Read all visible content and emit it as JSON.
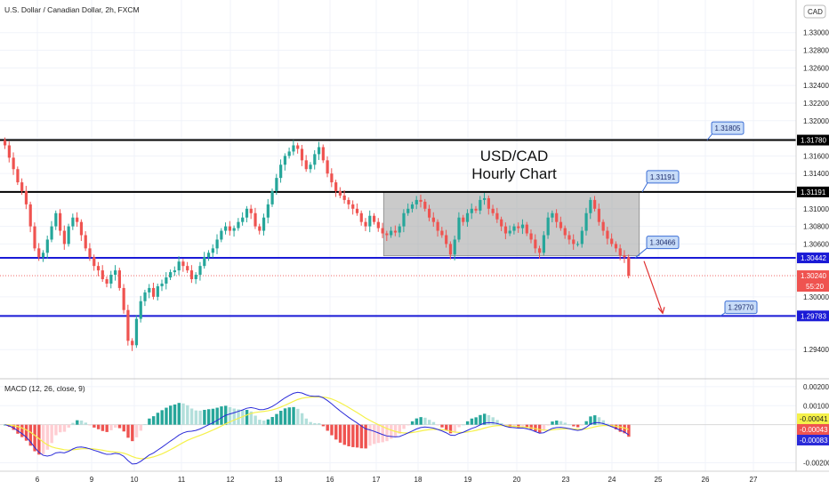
{
  "header": {
    "symbol_title": "U.S. Dollar / Canadian Dollar, 2h, FXCM",
    "currency_button": "CAD"
  },
  "annotation": {
    "line1": "USD/CAD",
    "line2": "Hourly Chart"
  },
  "macd_title": "MACD (12, 26, close, 9)",
  "colors": {
    "up": "#26a69a",
    "down": "#ef5350",
    "level_blue": "#1a1ad6",
    "level_black": "#000000",
    "box": "#9e9e9e",
    "callout_bg": "#c8dcf8",
    "callout_border": "#3d6fd6",
    "macd_line": "#2a2ad8",
    "signal_line": "#f5f14a",
    "arrow": "#e03030"
  },
  "chart_data": [
    {
      "type": "candlestick",
      "title": "U.S. Dollar / Canadian Dollar, 2h, FXCM",
      "x_ticks": [
        "6",
        "9",
        "10",
        "11",
        "12",
        "13",
        "16",
        "17",
        "18",
        "19",
        "20",
        "23",
        "24",
        "25",
        "26",
        "27"
      ],
      "y_ticks": [
        "1.33000",
        "1.32800",
        "1.32600",
        "1.32400",
        "1.32200",
        "1.32000",
        "1.31800",
        "1.31600",
        "1.31400",
        "1.31000",
        "1.30800",
        "1.30600",
        "1.30000",
        "1.29400"
      ],
      "ylim": [
        1.2915,
        1.3327
      ],
      "close_series": [
        1.3172,
        1.3158,
        1.3145,
        1.313,
        1.312,
        1.3105,
        1.308,
        1.3055,
        1.3045,
        1.305,
        1.3065,
        1.308,
        1.3095,
        1.3075,
        1.306,
        1.308,
        1.309,
        1.3085,
        1.307,
        1.3055,
        1.3045,
        1.3035,
        1.303,
        1.302,
        1.3015,
        1.3025,
        1.303,
        1.301,
        1.2985,
        1.295,
        1.2945,
        1.2975,
        1.2995,
        1.3005,
        1.301,
        1.3,
        1.3012,
        1.3015,
        1.3022,
        1.3028,
        1.303,
        1.304,
        1.3035,
        1.303,
        1.302,
        1.3025,
        1.3035,
        1.3045,
        1.305,
        1.3055,
        1.3065,
        1.3075,
        1.308,
        1.3075,
        1.3078,
        1.3085,
        1.309,
        1.31,
        1.3095,
        1.308,
        1.3075,
        1.309,
        1.3105,
        1.312,
        1.3135,
        1.315,
        1.316,
        1.3165,
        1.3172,
        1.3168,
        1.3155,
        1.3145,
        1.315,
        1.3162,
        1.317,
        1.3155,
        1.314,
        1.313,
        1.312,
        1.3115,
        1.311,
        1.3105,
        1.31,
        1.3095,
        1.3085,
        1.308,
        1.3092,
        1.3085,
        1.3078,
        1.3072,
        1.307,
        1.3075,
        1.3073,
        1.308,
        1.3095,
        1.31,
        1.3105,
        1.311,
        1.3108,
        1.31,
        1.309,
        1.3085,
        1.3075,
        1.307,
        1.306,
        1.3048,
        1.3065,
        1.309,
        1.3085,
        1.3095,
        1.31,
        1.3098,
        1.311,
        1.3112,
        1.31,
        1.3095,
        1.3088,
        1.308,
        1.3072,
        1.3075,
        1.308,
        1.3078,
        1.3082,
        1.3072,
        1.3065,
        1.3055,
        1.305,
        1.307,
        1.309,
        1.3095,
        1.3085,
        1.3078,
        1.307,
        1.3065,
        1.306,
        1.306,
        1.3075,
        1.3095,
        1.311,
        1.31,
        1.3085,
        1.3075,
        1.3066,
        1.306,
        1.3055,
        1.3047,
        1.3045,
        1.3024
      ],
      "price_levels": [
        {
          "label": "1.31780",
          "value": 1.3178,
          "style": "black"
        },
        {
          "label": "1.31191",
          "value": 1.31191,
          "style": "black"
        },
        {
          "label": "1.30442",
          "value": 1.30442,
          "style": "blue"
        },
        {
          "label": "1.29783",
          "value": 1.29783,
          "style": "blue"
        }
      ],
      "current_price": {
        "label": "1.30240",
        "value": 1.3024,
        "countdown": "55:20"
      },
      "callouts": [
        "1.31805",
        "1.31191",
        "1.30466",
        "1.29770"
      ],
      "range_box": {
        "low": 1.30466,
        "high": 1.31191,
        "from_index": 90,
        "to_index": 149
      },
      "forecast_arrow": {
        "from": 1.30466,
        "to": 1.29783
      }
    },
    {
      "type": "macd",
      "title": "MACD (12, 26, close, 9)",
      "y_ticks": [
        "0.00200",
        "0.00100",
        "-0.00200"
      ],
      "ylim": [
        -0.00235,
        0.00232
      ],
      "value_tags": [
        {
          "label": "-0.00041",
          "value": -0.00041,
          "role": "histogram"
        },
        {
          "label": "-0.00043",
          "value": -0.00043,
          "role": "signal"
        },
        {
          "label": "-0.00083",
          "value": -0.00083,
          "role": "macd"
        }
      ]
    }
  ]
}
